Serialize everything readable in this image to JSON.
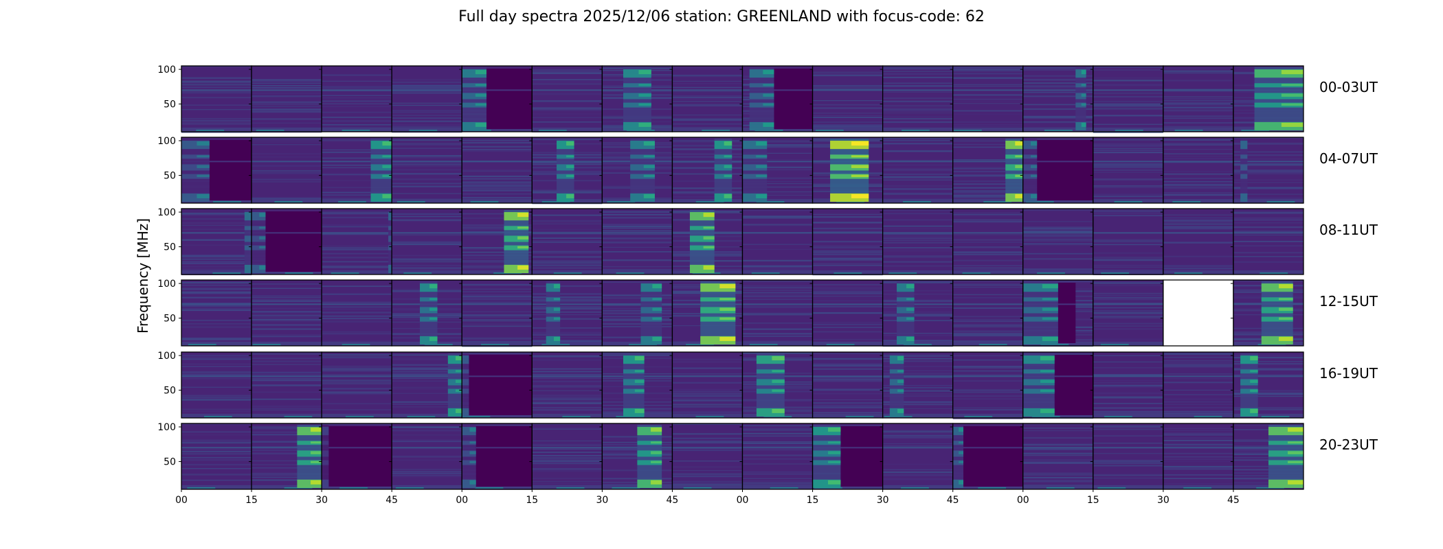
{
  "chart_data": {
    "type": "heatmap",
    "title": "Full day spectra 2025/12/06 station: GREENLAND with focus-code: 62",
    "ylabel": "Frequency [MHz]",
    "xlabel": "",
    "ylim": [
      10,
      105
    ],
    "yticks": [
      "100",
      "50"
    ],
    "ytick_values": [
      100,
      50
    ],
    "xticks": [
      "00",
      "15",
      "30",
      "45",
      "00",
      "15",
      "30",
      "45",
      "00",
      "15",
      "30",
      "45",
      "00",
      "15",
      "30",
      "45"
    ],
    "colormap": "viridis",
    "panel_minutes": 15,
    "panels_per_row": 16,
    "rows": [
      {
        "label": "00-03UT",
        "panels": [
          {
            "burst": null
          },
          {
            "burst": null
          },
          {
            "burst": null
          },
          {
            "burst": null
          },
          {
            "burst": [
              0.0,
              0.35,
              0.45
            ],
            "dark": [
              0.35,
              1.0
            ]
          },
          {
            "burst": null
          },
          {
            "burst": [
              0.3,
              0.7,
              0.5
            ]
          },
          {
            "burst": null
          },
          {
            "burst": [
              0.1,
              0.45,
              0.4
            ],
            "dark": [
              0.45,
              1.0
            ]
          },
          {
            "burst": null
          },
          {
            "burst": null
          },
          {
            "burst": null
          },
          {
            "burst": [
              0.75,
              0.9,
              0.4
            ]
          },
          {
            "burst": null
          },
          {
            "burst": null
          },
          {
            "burst": [
              0.3,
              1.0,
              0.7
            ]
          }
        ]
      },
      {
        "label": "04-07UT",
        "panels": [
          {
            "burst": [
              0.0,
              0.4,
              0.3
            ],
            "dark": [
              0.4,
              1.0
            ]
          },
          {
            "burst": null
          },
          {
            "burst": [
              0.7,
              1.0,
              0.55
            ]
          },
          {
            "burst": null
          },
          {
            "burst": null
          },
          {
            "burst": [
              0.35,
              0.6,
              0.55
            ]
          },
          {
            "burst": [
              0.4,
              0.75,
              0.45
            ]
          },
          {
            "burst": [
              0.6,
              0.85,
              0.55
            ]
          },
          {
            "burst": [
              0.0,
              0.35,
              0.4
            ]
          },
          {
            "burst": [
              0.25,
              0.8,
              0.9
            ]
          },
          {
            "burst": null
          },
          {
            "burst": [
              0.75,
              1.0,
              0.8
            ]
          },
          {
            "burst": [
              0.0,
              0.2,
              0.3
            ],
            "dark": [
              0.2,
              1.0
            ]
          },
          {
            "burst": null
          },
          {
            "burst": null
          },
          {
            "burst": [
              0.1,
              0.2,
              0.35
            ]
          }
        ]
      },
      {
        "label": "08-11UT",
        "panels": [
          {
            "burst": [
              0.9,
              1.0,
              0.4
            ]
          },
          {
            "burst": [
              0.0,
              0.2,
              0.3
            ],
            "dark": [
              0.2,
              1.0
            ]
          },
          {
            "burst": [
              0.95,
              1.0,
              0.35
            ]
          },
          {
            "burst": null
          },
          {
            "burst": [
              0.6,
              0.95,
              0.8
            ]
          },
          {
            "burst": null
          },
          {
            "burst": null
          },
          {
            "burst": [
              0.25,
              0.6,
              0.75
            ]
          },
          {
            "burst": null
          },
          {
            "burst": null
          },
          {
            "burst": null
          },
          {
            "burst": null
          },
          {
            "burst": null
          },
          {
            "burst": null
          },
          {
            "burst": null
          },
          {
            "burst": null
          }
        ]
      },
      {
        "label": "12-15UT",
        "panels": [
          {
            "burst": null
          },
          {
            "burst": null
          },
          {
            "burst": null
          },
          {
            "burst": [
              0.4,
              0.65,
              0.5
            ]
          },
          {
            "burst": null
          },
          {
            "burst": [
              0.2,
              0.4,
              0.45
            ]
          },
          {
            "burst": [
              0.55,
              0.85,
              0.45
            ]
          },
          {
            "burst": [
              0.4,
              0.9,
              0.8
            ]
          },
          {
            "burst": null
          },
          {
            "burst": null
          },
          {
            "burst": [
              0.2,
              0.45,
              0.45
            ]
          },
          {
            "burst": null
          },
          {
            "burst": [
              0.0,
              0.5,
              0.45
            ],
            "dark": [
              0.5,
              0.75
            ]
          },
          {
            "burst": null
          },
          {
            "missing": true
          },
          {
            "burst": [
              0.4,
              0.85,
              0.75
            ]
          }
        ]
      },
      {
        "label": "16-19UT",
        "panels": [
          {
            "burst": null
          },
          {
            "burst": null
          },
          {
            "burst": null
          },
          {
            "burst": [
              0.8,
              1.0,
              0.55
            ]
          },
          {
            "burst": [
              0.0,
              0.1,
              0.3
            ],
            "dark": [
              0.1,
              1.0
            ]
          },
          {
            "burst": null
          },
          {
            "burst": [
              0.3,
              0.6,
              0.55
            ]
          },
          {
            "burst": null
          },
          {
            "burst": [
              0.2,
              0.6,
              0.6
            ]
          },
          {
            "burst": null
          },
          {
            "burst": [
              0.1,
              0.3,
              0.45
            ]
          },
          {
            "burst": null
          },
          {
            "burst": [
              0.0,
              0.45,
              0.5
            ],
            "dark": [
              0.45,
              1.0
            ]
          },
          {
            "burst": null
          },
          {
            "burst": null
          },
          {
            "burst": [
              0.1,
              0.35,
              0.55
            ]
          }
        ]
      },
      {
        "label": "20-23UT",
        "panels": [
          {
            "burst": null
          },
          {
            "burst": [
              0.65,
              1.0,
              0.75
            ]
          },
          {
            "burst": [
              0.0,
              0.1,
              0.2
            ],
            "dark": [
              0.1,
              1.0
            ]
          },
          {
            "burst": null
          },
          {
            "burst": [
              0.0,
              0.2,
              0.3
            ],
            "dark": [
              0.2,
              1.0
            ]
          },
          {
            "burst": null
          },
          {
            "burst": [
              0.5,
              0.85,
              0.7
            ]
          },
          {
            "burst": null
          },
          {
            "burst": null
          },
          {
            "burst": [
              0.0,
              0.4,
              0.55
            ],
            "dark": [
              0.4,
              1.0
            ]
          },
          {
            "burst": null
          },
          {
            "burst": [
              0.0,
              0.15,
              0.35
            ],
            "dark": [
              0.15,
              1.0
            ]
          },
          {
            "burst": null
          },
          {
            "burst": null
          },
          {
            "burst": null
          },
          {
            "burst": [
              0.5,
              1.0,
              0.75
            ]
          }
        ]
      }
    ]
  }
}
